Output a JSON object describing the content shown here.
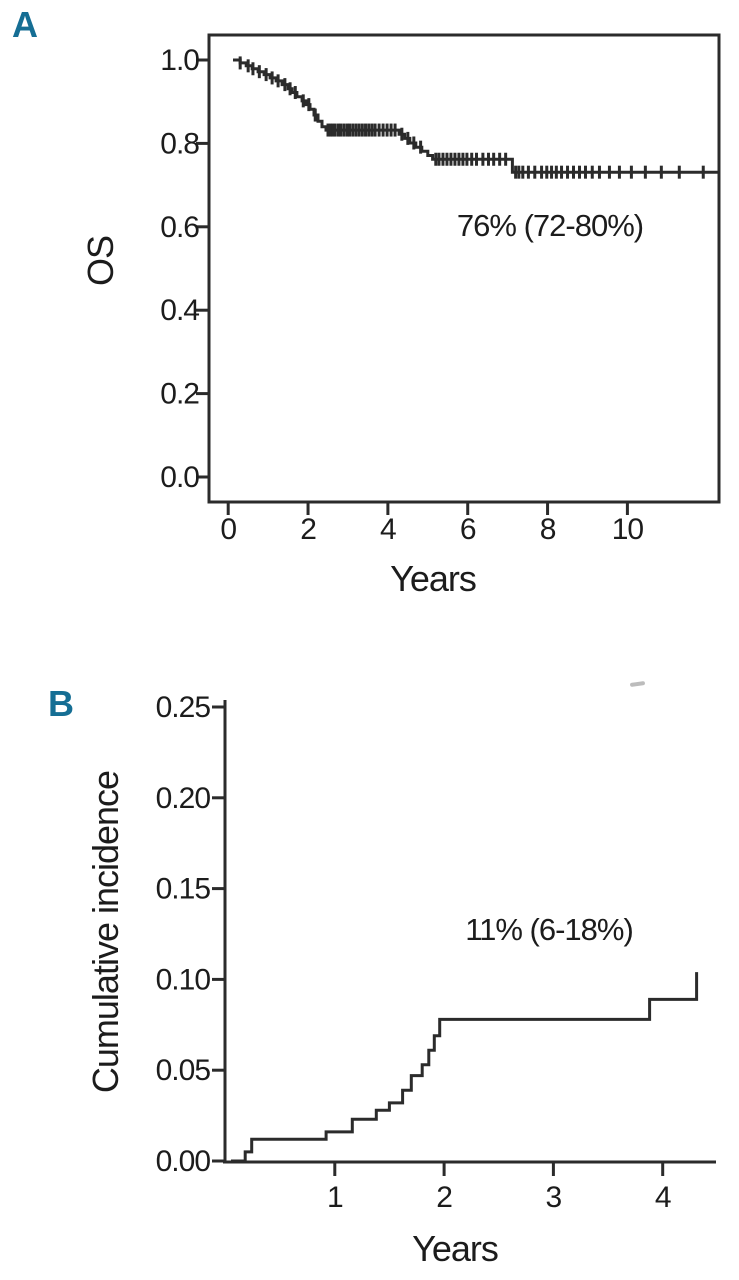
{
  "figure": {
    "accent_color": "#156e94",
    "line_color": "#2b2b2b",
    "text_color": "#1c1c1c"
  },
  "chart_data": [
    {
      "id": "A",
      "type": "line",
      "subtype": "kaplan-meier-step-survival",
      "panel_label": "A",
      "title": "",
      "xlabel": "Years",
      "ylabel": "OS",
      "annotation": {
        "text": "76% (72-80%)",
        "x": 8.1,
        "y": 0.6
      },
      "xlim": [
        -0.5,
        12.3
      ],
      "ylim": [
        -0.06,
        1.06
      ],
      "grid": false,
      "legend": "none",
      "frame": "box",
      "xticks": [
        0,
        2,
        4,
        6,
        8,
        10
      ],
      "xtick_labels": [
        "0",
        "2",
        "4",
        "6",
        "8",
        "10"
      ],
      "yticks": [
        0.0,
        0.2,
        0.4,
        0.6,
        0.8,
        1.0
      ],
      "ytick_labels": [
        "0.0",
        "0.2",
        "0.4",
        "0.6",
        "0.8",
        "1.0"
      ],
      "points": [
        [
          0.12,
          1.0
        ],
        [
          0.3,
          0.993
        ],
        [
          0.45,
          0.986
        ],
        [
          0.6,
          0.979
        ],
        [
          0.75,
          0.972
        ],
        [
          0.9,
          0.965
        ],
        [
          1.05,
          0.957
        ],
        [
          1.2,
          0.95
        ],
        [
          1.35,
          0.941
        ],
        [
          1.5,
          0.931
        ],
        [
          1.6,
          0.922
        ],
        [
          1.72,
          0.912
        ],
        [
          1.85,
          0.902
        ],
        [
          1.95,
          0.893
        ],
        [
          2.05,
          0.882
        ],
        [
          2.15,
          0.868
        ],
        [
          2.25,
          0.853
        ],
        [
          2.35,
          0.84
        ],
        [
          2.45,
          0.832
        ],
        [
          4.28,
          0.822
        ],
        [
          4.42,
          0.812
        ],
        [
          4.55,
          0.801
        ],
        [
          4.7,
          0.791
        ],
        [
          4.85,
          0.781
        ],
        [
          5.0,
          0.771
        ],
        [
          5.12,
          0.762
        ],
        [
          7.12,
          0.731
        ],
        [
          12.28,
          0.731
        ]
      ],
      "censor_x": [
        0.3,
        0.5,
        0.62,
        0.78,
        0.95,
        1.1,
        1.25,
        1.42,
        1.55,
        1.68,
        1.88,
        2.02,
        2.18,
        2.5,
        2.56,
        2.62,
        2.68,
        2.76,
        2.82,
        2.9,
        2.98,
        3.04,
        3.12,
        3.2,
        3.28,
        3.36,
        3.44,
        3.52,
        3.6,
        3.68,
        3.78,
        3.88,
        3.98,
        4.08,
        4.18,
        4.35,
        4.5,
        4.65,
        4.82,
        5.2,
        5.28,
        5.38,
        5.48,
        5.58,
        5.68,
        5.78,
        5.88,
        5.98,
        6.1,
        6.22,
        6.38,
        6.52,
        6.65,
        6.8,
        6.95,
        7.2,
        7.28,
        7.38,
        7.52,
        7.68,
        7.85,
        7.98,
        8.1,
        8.22,
        8.35,
        8.5,
        8.65,
        8.8,
        8.95,
        9.12,
        9.3,
        9.55,
        9.8,
        10.1,
        10.45,
        10.85,
        11.3,
        11.9
      ]
    },
    {
      "id": "B",
      "type": "line",
      "subtype": "cumulative-incidence-step",
      "panel_label": "B",
      "title": "",
      "xlabel": "Years",
      "ylabel": "Cumulative incidence",
      "annotation": {
        "text": "11% (6-18%)",
        "x": 2.95,
        "y": 0.125
      },
      "xlim": [
        0,
        4.49
      ],
      "ylim": [
        0,
        0.25
      ],
      "grid": false,
      "legend": "none",
      "frame": "axes",
      "xticks": [
        1,
        2,
        3,
        4
      ],
      "xtick_labels": [
        "1",
        "2",
        "3",
        "4"
      ],
      "yticks": [
        0.0,
        0.05,
        0.1,
        0.15,
        0.2,
        0.25
      ],
      "ytick_labels": [
        "0.00",
        "0.05",
        "0.10",
        "0.15",
        "0.20",
        "0.25"
      ],
      "points": [
        [
          0.05,
          0.0
        ],
        [
          0.18,
          0.005
        ],
        [
          0.24,
          0.012
        ],
        [
          0.92,
          0.016
        ],
        [
          1.16,
          0.023
        ],
        [
          1.38,
          0.028
        ],
        [
          1.5,
          0.032
        ],
        [
          1.62,
          0.039
        ],
        [
          1.7,
          0.047
        ],
        [
          1.8,
          0.053
        ],
        [
          1.86,
          0.061
        ],
        [
          1.91,
          0.069
        ],
        [
          1.96,
          0.078
        ],
        [
          3.88,
          0.089
        ],
        [
          4.31,
          0.104
        ]
      ],
      "censor_x": []
    }
  ]
}
